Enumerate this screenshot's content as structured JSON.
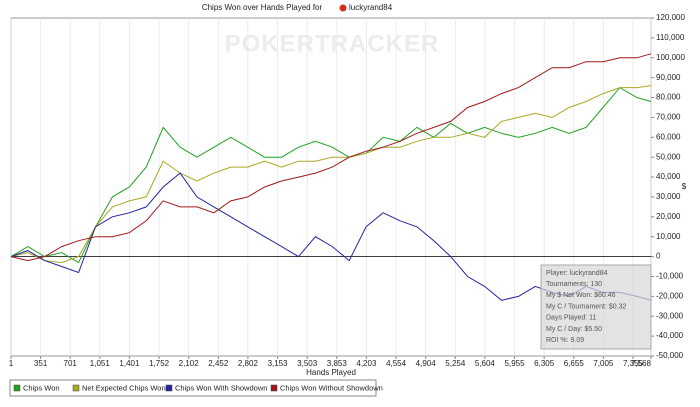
{
  "chart_data": {
    "type": "line",
    "title": "Chips Won over Hands Played for",
    "player": "luckyrand84",
    "watermark": "POKERTRACKER",
    "x_label": "Hands Played",
    "y_label": "$",
    "x": [
      1,
      200,
      400,
      600,
      800,
      1000,
      1200,
      1400,
      1600,
      1800,
      2000,
      2200,
      2400,
      2600,
      2800,
      3000,
      3200,
      3400,
      3600,
      3800,
      4000,
      4200,
      4400,
      4600,
      4800,
      5000,
      5200,
      5400,
      5600,
      5800,
      6000,
      6200,
      6400,
      6600,
      6800,
      7000,
      7200,
      7400,
      7568
    ],
    "series": [
      {
        "name": "Chips Won",
        "color": "#22a022",
        "values": [
          0,
          5000,
          0,
          2000,
          -3000,
          15000,
          30000,
          35000,
          45000,
          65000,
          55000,
          50000,
          55000,
          60000,
          55000,
          50000,
          50000,
          55000,
          58000,
          55000,
          50000,
          52000,
          60000,
          58000,
          65000,
          60000,
          67000,
          62000,
          65000,
          62000,
          60000,
          62000,
          65000,
          62000,
          65000,
          75000,
          85000,
          80000,
          78000
        ]
      },
      {
        "name": "Net Expected Chips Won",
        "color": "#aaa820",
        "values": [
          0,
          2000,
          -2000,
          -3000,
          0,
          15000,
          25000,
          28000,
          30000,
          48000,
          42000,
          38000,
          42000,
          45000,
          45000,
          48000,
          45000,
          48000,
          48000,
          50000,
          50000,
          52000,
          55000,
          55000,
          58000,
          60000,
          60000,
          62000,
          60000,
          68000,
          70000,
          72000,
          70000,
          75000,
          78000,
          82000,
          85000,
          85000,
          86000
        ]
      },
      {
        "name": "Chips Won With Showdown",
        "color": "#2424a0",
        "values": [
          0,
          3000,
          -2000,
          -5000,
          -8000,
          15000,
          20000,
          22000,
          25000,
          35000,
          42000,
          30000,
          25000,
          20000,
          15000,
          10000,
          5000,
          0,
          10000,
          5000,
          -2000,
          15000,
          22000,
          18000,
          15000,
          8000,
          0,
          -10000,
          -15000,
          -22000,
          -20000,
          -15000,
          -18000,
          -20000,
          -15000,
          -18000,
          -18000,
          -20000,
          -22000
        ]
      },
      {
        "name": "Chips Won Without Showdown",
        "color": "#a01818",
        "values": [
          0,
          -2000,
          0,
          5000,
          8000,
          10000,
          10000,
          12000,
          18000,
          28000,
          25000,
          25000,
          22000,
          28000,
          30000,
          35000,
          38000,
          40000,
          42000,
          45000,
          50000,
          53000,
          55000,
          58000,
          62000,
          65000,
          68000,
          75000,
          78000,
          82000,
          85000,
          90000,
          95000,
          95000,
          98000,
          98000,
          100000,
          100000,
          102000
        ]
      }
    ],
    "xlim": [
      1,
      7568
    ],
    "xticks": [
      1,
      351,
      701,
      {
        "value": 1051,
        "label": "1,051"
      },
      {
        "value": 1401,
        "label": "1,401"
      },
      {
        "value": 1752,
        "label": "1,752"
      },
      {
        "value": 2102,
        "label": "2,102"
      },
      {
        "value": 2452,
        "label": "2,452"
      },
      {
        "value": 2802,
        "label": "2,802"
      },
      {
        "value": 3153,
        "label": "3,153"
      },
      {
        "value": 3503,
        "label": "3,503"
      },
      {
        "value": 3853,
        "label": "3,853"
      },
      {
        "value": 4203,
        "label": "4,203"
      },
      {
        "value": 4554,
        "label": "4,554"
      },
      {
        "value": 4904,
        "label": "4,904"
      },
      {
        "value": 5254,
        "label": "5,254"
      },
      {
        "value": 5604,
        "label": "5,604"
      },
      {
        "value": 5955,
        "label": "5,955"
      },
      {
        "value": 6305,
        "label": "6,305"
      },
      {
        "value": 6655,
        "label": "6,655"
      },
      {
        "value": 7005,
        "label": "7,005"
      },
      {
        "value": 7355,
        "label": "7,355"
      },
      {
        "value": 7568,
        "label": "7,568"
      }
    ],
    "ylim": [
      -50000,
      120000
    ],
    "yticks": [
      {
        "value": -50000,
        "label": "-50,000"
      },
      {
        "value": -40000,
        "label": "-40,000"
      },
      {
        "value": -30000,
        "label": "-30,000"
      },
      {
        "value": -20000,
        "label": "-20,000"
      },
      {
        "value": -10000,
        "label": "-10,000"
      },
      0,
      {
        "value": 10000,
        "label": "10,000"
      },
      {
        "value": 20000,
        "label": "20,000"
      },
      {
        "value": 30000,
        "label": "30,000"
      },
      {
        "value": 40000,
        "label": "40,000"
      },
      {
        "value": 50000,
        "label": "50,000"
      },
      {
        "value": 60000,
        "label": "60,000"
      },
      {
        "value": 70000,
        "label": "70,000"
      },
      {
        "value": 80000,
        "label": "80,000"
      },
      {
        "value": 90000,
        "label": "90,000"
      },
      {
        "value": 100000,
        "label": "100,000"
      },
      {
        "value": 110000,
        "label": "110,000"
      },
      {
        "value": 120000,
        "label": "120,000"
      }
    ],
    "grid": true,
    "info_box": [
      "Player: luckyrand84",
      "Tournaments: 130",
      "My $ Net Won: $60.46",
      "My C / Tournament: $0.32",
      "Days Played: 11",
      "My C / Day: $5.50",
      "ROI %: 9.09"
    ]
  }
}
